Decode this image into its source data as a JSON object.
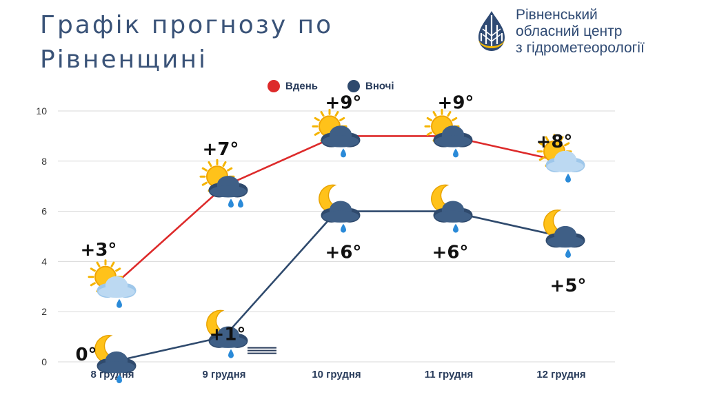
{
  "header": {
    "title_line1": "Графік прогнозу по",
    "title_line2": "Рівненщині"
  },
  "org": {
    "line1": "Рівненський",
    "line2": "обласний центр",
    "line3": "з гідрометеорології"
  },
  "legend": {
    "day_label": "Вдень",
    "night_label": "Вночі"
  },
  "colors": {
    "day": "#dd2a2a",
    "night": "#2f4a6d",
    "title": "#3a5378",
    "grid": "#d9d9d9"
  },
  "chart_data": {
    "type": "line",
    "categories": [
      "8 грудня",
      "9 грудня",
      "10 грудня",
      "11 грудня",
      "12 грудня"
    ],
    "ylim": [
      0,
      10
    ],
    "yticks": [
      0,
      2,
      4,
      6,
      8,
      10
    ],
    "grid": true,
    "legend_position": "top",
    "series": [
      {
        "name": "Вдень",
        "color": "#dd2a2a",
        "values": [
          3,
          7,
          9,
          9,
          8
        ],
        "labels": [
          "+3°",
          "+7°",
          "+9°",
          "+9°",
          "+8°"
        ],
        "icons": [
          "sun-cloud-rain-icon",
          "sun-cloud-rain-icon",
          "sun-cloud-rain-icon",
          "sun-cloud-rain-icon",
          "sun-cloud-rain-icon"
        ]
      },
      {
        "name": "Вночі",
        "color": "#2f4a6d",
        "values": [
          0,
          1,
          6,
          6,
          5
        ],
        "labels": [
          "0°",
          "+1°",
          "+6°",
          "+6°",
          "+5°"
        ],
        "icons": [
          "moon-cloud-rain-icon",
          "moon-cloud-rain-fog-icon",
          "moon-cloud-rain-icon",
          "moon-cloud-rain-icon",
          "moon-cloud-rain-icon"
        ]
      }
    ]
  }
}
